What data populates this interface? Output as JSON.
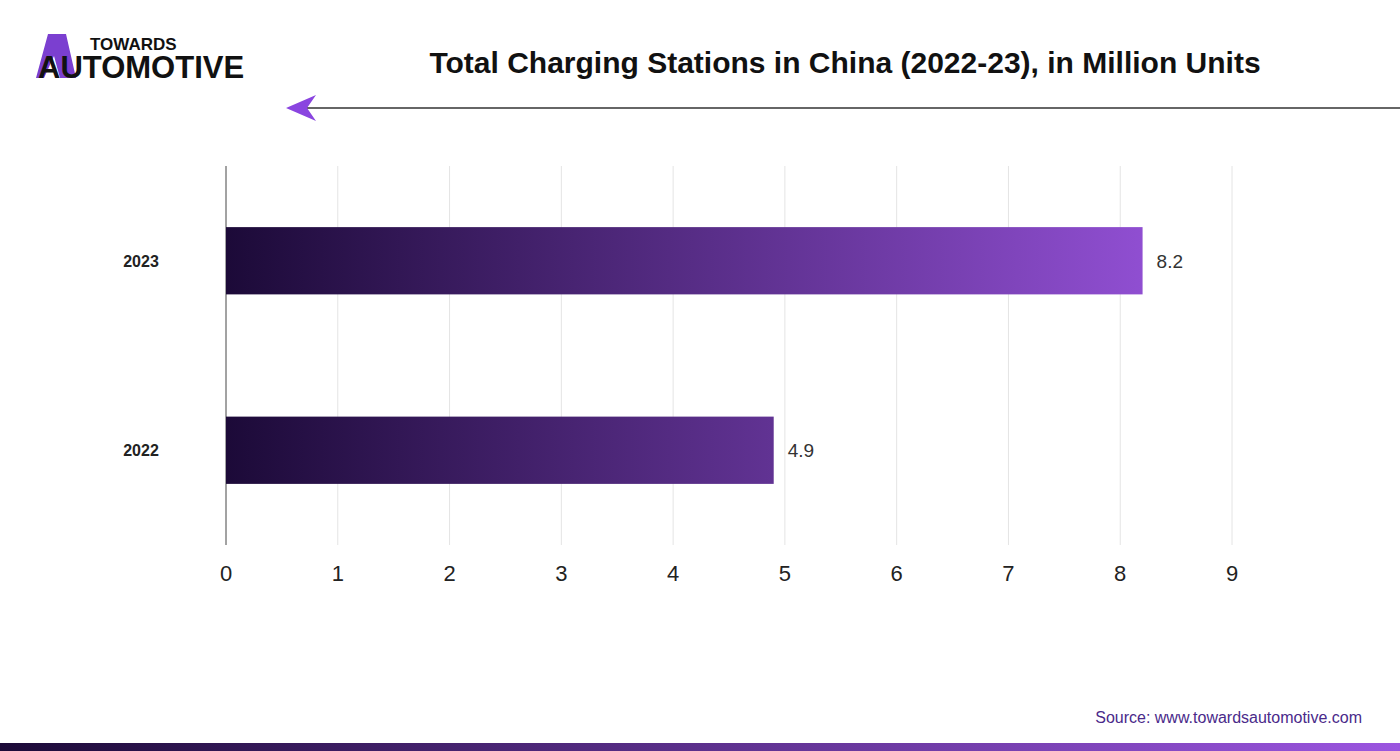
{
  "chart_data": {
    "type": "bar",
    "orientation": "horizontal",
    "title": "Total Charging Stations in China (2022-23), in Million Units",
    "annotations": [
      "TOWARDS",
      "AUTOMOTIVE",
      "Source: www.towardsautomotive.com"
    ],
    "categories": [
      "2023",
      "2022"
    ],
    "values": [
      8.2,
      4.9
    ],
    "color": "#9b55e0",
    "xlim": [
      0,
      9
    ],
    "xticks": [
      0,
      1,
      2,
      3,
      4,
      5,
      6,
      7,
      8,
      9
    ],
    "grid": true,
    "data_labels": true
  }
}
